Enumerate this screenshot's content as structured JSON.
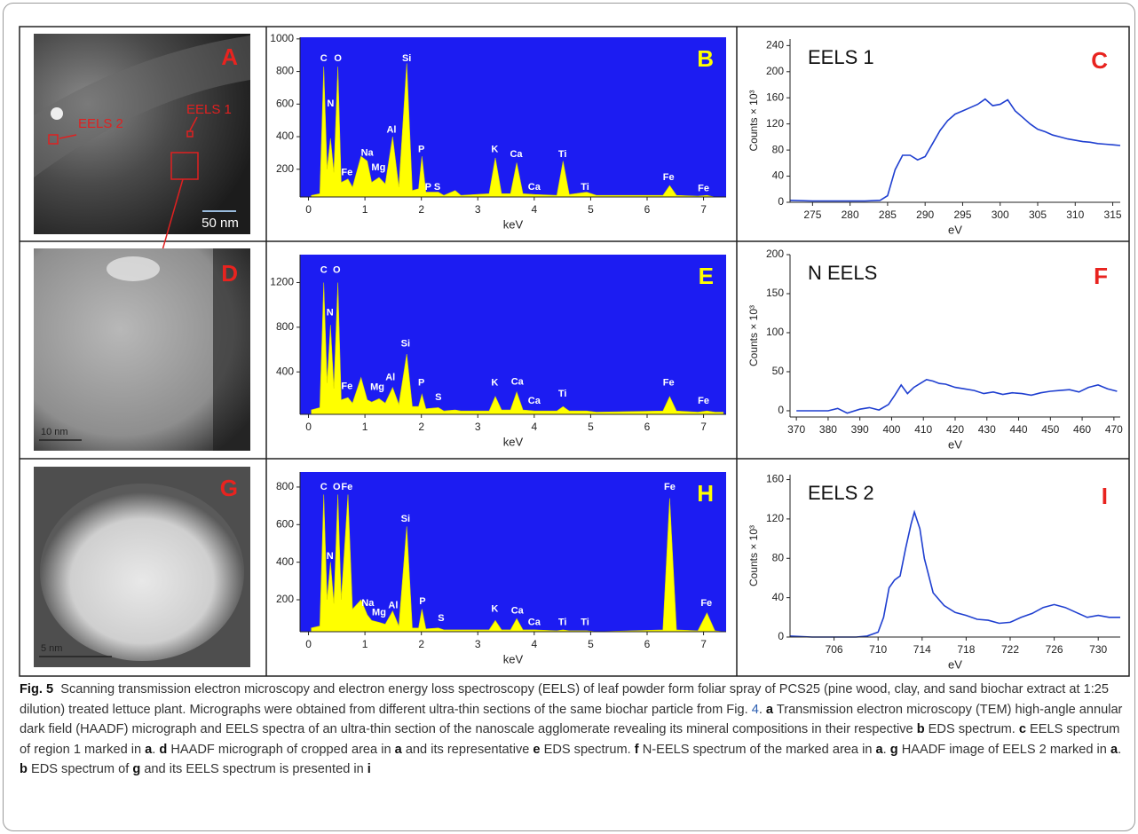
{
  "chart_data": [
    {
      "type": "area",
      "panel": "B",
      "panel_color": "#ffff00",
      "background": "#1c1cf2",
      "color": "#ffff00",
      "xlabel": "keV",
      "x": [
        0.05,
        0.2,
        0.27,
        0.33,
        0.39,
        0.45,
        0.52,
        0.58,
        0.7,
        0.78,
        0.93,
        1.04,
        1.12,
        1.25,
        1.36,
        1.49,
        1.6,
        1.74,
        1.84,
        1.95,
        2.01,
        2.08,
        2.3,
        2.4,
        2.6,
        2.7,
        3.2,
        3.31,
        3.42,
        3.58,
        3.69,
        3.8,
        4.01,
        4.4,
        4.51,
        4.62,
        4.93,
        5.1,
        6.28,
        6.4,
        6.52,
        6.9,
        7.06,
        7.2,
        7.35
      ],
      "values": [
        40,
        50,
        830,
        200,
        390,
        180,
        830,
        120,
        140,
        90,
        280,
        250,
        120,
        150,
        110,
        400,
        90,
        850,
        70,
        80,
        280,
        60,
        60,
        40,
        70,
        40,
        50,
        270,
        50,
        50,
        240,
        50,
        45,
        40,
        250,
        45,
        60,
        40,
        40,
        100,
        40,
        35,
        40,
        30,
        30
      ],
      "xlim": [
        -0.15,
        7.4
      ],
      "ylim": [
        30,
        1010
      ],
      "xticks": [
        0,
        1,
        2,
        3,
        4,
        5,
        6,
        7
      ],
      "yticks": [
        200,
        400,
        600,
        800,
        1000
      ],
      "peak_labels": [
        {
          "text": "C",
          "x": 0.27,
          "y": 880
        },
        {
          "text": "O",
          "x": 0.52,
          "y": 880
        },
        {
          "text": "N",
          "x": 0.39,
          "y": 600
        },
        {
          "text": "Fe",
          "x": 0.68,
          "y": 180
        },
        {
          "text": "Na",
          "x": 1.04,
          "y": 300
        },
        {
          "text": "Mg",
          "x": 1.24,
          "y": 210
        },
        {
          "text": "Al",
          "x": 1.47,
          "y": 440
        },
        {
          "text": "Si",
          "x": 1.74,
          "y": 880
        },
        {
          "text": "P",
          "x": 2.0,
          "y": 320
        },
        {
          "text": "P",
          "x": 2.12,
          "y": 90
        },
        {
          "text": "S",
          "x": 2.28,
          "y": 90
        },
        {
          "text": "K",
          "x": 3.3,
          "y": 320
        },
        {
          "text": "Ca",
          "x": 3.68,
          "y": 290
        },
        {
          "text": "Ca",
          "x": 4.0,
          "y": 90
        },
        {
          "text": "Ti",
          "x": 4.5,
          "y": 290
        },
        {
          "text": "Ti",
          "x": 4.9,
          "y": 90
        },
        {
          "text": "Fe",
          "x": 6.38,
          "y": 150
        },
        {
          "text": "Fe",
          "x": 7.0,
          "y": 80
        }
      ]
    },
    {
      "type": "line",
      "panel": "C",
      "panel_color": "#e8231f",
      "title": "EELS 1",
      "color": "#1f3fd0",
      "xlabel": "eV",
      "ylabel": "Counts × 10³",
      "x": [
        272,
        275,
        278,
        280,
        282,
        284,
        285,
        286,
        287,
        288,
        289,
        290,
        291,
        292,
        293,
        294,
        295,
        296,
        297,
        298,
        299,
        300,
        301,
        302,
        303,
        304,
        305,
        306,
        307,
        308,
        309,
        310,
        311,
        312,
        313,
        314,
        315,
        316
      ],
      "values": [
        3,
        2,
        2,
        2,
        2,
        3,
        10,
        50,
        72,
        72,
        65,
        70,
        90,
        110,
        125,
        135,
        140,
        145,
        150,
        158,
        148,
        150,
        157,
        140,
        130,
        120,
        112,
        108,
        103,
        100,
        97,
        95,
        93,
        92,
        90,
        89,
        88,
        87
      ],
      "xlim": [
        272,
        316
      ],
      "ylim": [
        0,
        250
      ],
      "xticks": [
        275,
        280,
        285,
        290,
        295,
        300,
        305,
        310,
        315
      ],
      "yticks": [
        0,
        40,
        80,
        120,
        160,
        200,
        240
      ]
    },
    {
      "type": "area",
      "panel": "E",
      "panel_color": "#ffff00",
      "background": "#1c1cf2",
      "color": "#ffff00",
      "xlabel": "keV",
      "x": [
        0.05,
        0.2,
        0.27,
        0.33,
        0.39,
        0.45,
        0.52,
        0.58,
        0.7,
        0.78,
        0.93,
        1.04,
        1.12,
        1.25,
        1.36,
        1.49,
        1.6,
        1.74,
        1.84,
        1.95,
        2.01,
        2.08,
        2.3,
        2.4,
        2.6,
        2.7,
        3.2,
        3.31,
        3.42,
        3.58,
        3.69,
        3.8,
        4.01,
        4.4,
        4.51,
        4.62,
        4.93,
        5.1,
        6.28,
        6.4,
        6.52,
        6.9,
        7.06,
        7.2,
        7.35
      ],
      "values": [
        60,
        80,
        1200,
        300,
        820,
        250,
        1200,
        150,
        170,
        120,
        350,
        150,
        130,
        160,
        120,
        260,
        110,
        560,
        90,
        90,
        200,
        70,
        80,
        50,
        60,
        50,
        50,
        180,
        60,
        60,
        220,
        60,
        50,
        50,
        90,
        50,
        50,
        40,
        50,
        180,
        50,
        40,
        50,
        40,
        40
      ],
      "xlim": [
        -0.15,
        7.4
      ],
      "ylim": [
        20,
        1450
      ],
      "xticks": [
        0,
        1,
        2,
        3,
        4,
        5,
        6,
        7
      ],
      "yticks": [
        400,
        800,
        1200
      ],
      "peak_labels": [
        {
          "text": "C",
          "x": 0.27,
          "y": 1310
        },
        {
          "text": "O",
          "x": 0.5,
          "y": 1310
        },
        {
          "text": "N",
          "x": 0.38,
          "y": 930
        },
        {
          "text": "Fe",
          "x": 0.68,
          "y": 270
        },
        {
          "text": "Mg",
          "x": 1.22,
          "y": 260
        },
        {
          "text": "Al",
          "x": 1.45,
          "y": 350
        },
        {
          "text": "Si",
          "x": 1.72,
          "y": 650
        },
        {
          "text": "P",
          "x": 2.0,
          "y": 300
        },
        {
          "text": "S",
          "x": 2.3,
          "y": 170
        },
        {
          "text": "K",
          "x": 3.3,
          "y": 300
        },
        {
          "text": "Ca",
          "x": 3.7,
          "y": 310
        },
        {
          "text": "Ca",
          "x": 4.0,
          "y": 140
        },
        {
          "text": "Ti",
          "x": 4.5,
          "y": 200
        },
        {
          "text": "Fe",
          "x": 6.38,
          "y": 300
        },
        {
          "text": "Fe",
          "x": 7.0,
          "y": 140
        }
      ]
    },
    {
      "type": "line",
      "panel": "F",
      "panel_color": "#e8231f",
      "title": "N EELS",
      "color": "#1f3fd0",
      "xlabel": "eV",
      "ylabel": "Counts × 10³",
      "x": [
        370,
        375,
        380,
        383,
        386,
        390,
        393,
        396,
        399,
        401,
        403,
        405,
        407,
        409,
        411,
        413,
        415,
        417,
        420,
        423,
        426,
        429,
        432,
        435,
        438,
        441,
        444,
        447,
        450,
        453,
        456,
        459,
        462,
        465,
        468,
        471
      ],
      "values": [
        0,
        0,
        0,
        3,
        -3,
        2,
        4,
        1,
        8,
        20,
        33,
        22,
        30,
        35,
        40,
        38,
        35,
        34,
        30,
        28,
        26,
        22,
        24,
        21,
        23,
        22,
        20,
        23,
        25,
        26,
        27,
        24,
        30,
        33,
        28,
        25
      ],
      "xlim": [
        368,
        472
      ],
      "ylim": [
        -8,
        200
      ],
      "xticks": [
        370,
        380,
        390,
        400,
        410,
        420,
        430,
        440,
        450,
        460,
        470
      ],
      "yticks": [
        0,
        50,
        100,
        150,
        200
      ]
    },
    {
      "type": "area",
      "panel": "H",
      "panel_color": "#ffff00",
      "background": "#1c1cf2",
      "color": "#ffff00",
      "xlabel": "keV",
      "x": [
        0.05,
        0.2,
        0.27,
        0.33,
        0.39,
        0.45,
        0.52,
        0.58,
        0.7,
        0.78,
        0.93,
        1.04,
        1.12,
        1.25,
        1.36,
        1.49,
        1.6,
        1.74,
        1.84,
        1.95,
        2.01,
        2.08,
        2.3,
        2.4,
        2.6,
        2.7,
        3.2,
        3.31,
        3.42,
        3.58,
        3.69,
        3.8,
        4.01,
        4.4,
        4.51,
        4.62,
        4.93,
        5.1,
        6.28,
        6.4,
        6.52,
        6.9,
        7.06,
        7.2,
        7.35
      ],
      "values": [
        50,
        60,
        760,
        200,
        400,
        180,
        760,
        200,
        760,
        150,
        200,
        120,
        90,
        80,
        70,
        140,
        60,
        590,
        50,
        50,
        150,
        45,
        50,
        40,
        40,
        40,
        40,
        90,
        40,
        40,
        100,
        40,
        40,
        35,
        40,
        35,
        35,
        30,
        40,
        740,
        40,
        35,
        130,
        35,
        30
      ],
      "xlim": [
        -0.15,
        7.4
      ],
      "ylim": [
        30,
        880
      ],
      "xticks": [
        0,
        1,
        2,
        3,
        4,
        5,
        6,
        7
      ],
      "yticks": [
        200,
        400,
        600,
        800
      ],
      "peak_labels": [
        {
          "text": "C",
          "x": 0.27,
          "y": 800
        },
        {
          "text": "O",
          "x": 0.5,
          "y": 800
        },
        {
          "text": "Fe",
          "x": 0.68,
          "y": 800
        },
        {
          "text": "N",
          "x": 0.38,
          "y": 430
        },
        {
          "text": "Na",
          "x": 1.05,
          "y": 180
        },
        {
          "text": "Mg",
          "x": 1.25,
          "y": 130
        },
        {
          "text": "Al",
          "x": 1.5,
          "y": 170
        },
        {
          "text": "Si",
          "x": 1.72,
          "y": 630
        },
        {
          "text": "P",
          "x": 2.02,
          "y": 190
        },
        {
          "text": "S",
          "x": 2.35,
          "y": 100
        },
        {
          "text": "K",
          "x": 3.3,
          "y": 150
        },
        {
          "text": "Ca",
          "x": 3.7,
          "y": 140
        },
        {
          "text": "Ca",
          "x": 4.0,
          "y": 80
        },
        {
          "text": "Ti",
          "x": 4.5,
          "y": 80
        },
        {
          "text": "Ti",
          "x": 4.9,
          "y": 80
        },
        {
          "text": "Fe",
          "x": 6.4,
          "y": 800
        },
        {
          "text": "Fe",
          "x": 7.05,
          "y": 180
        }
      ]
    },
    {
      "type": "line",
      "panel": "I",
      "panel_color": "#e8231f",
      "title": "EELS 2",
      "color": "#1f3fd0",
      "xlabel": "eV",
      "ylabel": "Counts × 10³",
      "x": [
        702,
        704,
        706,
        708,
        709,
        710,
        710.5,
        711,
        711.5,
        712,
        712.5,
        713,
        713.3,
        713.8,
        714.2,
        715,
        716,
        717,
        718,
        719,
        720,
        721,
        722,
        723,
        724,
        725,
        726,
        727,
        728,
        729,
        730,
        731,
        732
      ],
      "values": [
        1,
        0,
        0,
        0,
        1,
        5,
        20,
        50,
        58,
        62,
        90,
        115,
        127,
        110,
        80,
        45,
        32,
        25,
        22,
        18,
        17,
        14,
        15,
        20,
        24,
        30,
        33,
        30,
        25,
        20,
        22,
        20,
        20
      ],
      "xlim": [
        702,
        732
      ],
      "ylim": [
        0,
        165
      ],
      "xticks": [
        706,
        710,
        714,
        718,
        722,
        726,
        730
      ],
      "yticks": [
        0,
        40,
        80,
        120,
        160
      ]
    }
  ],
  "micrographs": [
    {
      "panel": "A",
      "labels": [
        "EELS 2",
        "EELS 1"
      ],
      "scale_bar": "50 nm"
    },
    {
      "panel": "D",
      "scale_bar": "10 nm"
    },
    {
      "panel": "G",
      "scale_bar": "5 nm"
    }
  ],
  "caption": [
    {
      "text": "Fig. 5",
      "bold": true
    },
    {
      "text": "  Scanning transmission electron microscopy and electron energy loss spectroscopy (EELS) of leaf powder form foliar spray of PCS25 (pine wood, clay, and sand biochar extract at 1:25 dilution) treated lettuce plant. Micrographs were obtained from different ultra-thin sections of the same biochar particle from Fig. "
    },
    {
      "text": "4",
      "link": true
    },
    {
      "text": ". "
    },
    {
      "text": "a",
      "bold": true
    },
    {
      "text": " Transmission electron microscopy (TEM) high-angle annular dark field (HAADF) micrograph and EELS spectra of an ultra-thin section of the nanoscale agglomerate revealing its mineral compositions in their respective "
    },
    {
      "text": "b",
      "bold": true
    },
    {
      "text": " EDS spectrum. "
    },
    {
      "text": "c",
      "bold": true
    },
    {
      "text": " EELS spectrum of region 1 marked in "
    },
    {
      "text": "a",
      "bold": true
    },
    {
      "text": ". "
    },
    {
      "text": "d",
      "bold": true
    },
    {
      "text": " HAADF micrograph of cropped area in "
    },
    {
      "text": "a",
      "bold": true
    },
    {
      "text": " and its representative "
    },
    {
      "text": "e",
      "bold": true
    },
    {
      "text": " EDS spectrum. "
    },
    {
      "text": "f",
      "bold": true
    },
    {
      "text": " N-EELS spectrum of the marked area in "
    },
    {
      "text": "a",
      "bold": true
    },
    {
      "text": ". "
    },
    {
      "text": "g",
      "bold": true
    },
    {
      "text": " HAADF image of EELS 2 marked in "
    },
    {
      "text": "a",
      "bold": true
    },
    {
      "text": ". "
    },
    {
      "text": "b",
      "bold": true
    },
    {
      "text": " EDS spectrum of "
    },
    {
      "text": "g",
      "bold": true
    },
    {
      "text": " and its EELS spectrum is presented in "
    },
    {
      "text": "i",
      "bold": true
    }
  ]
}
